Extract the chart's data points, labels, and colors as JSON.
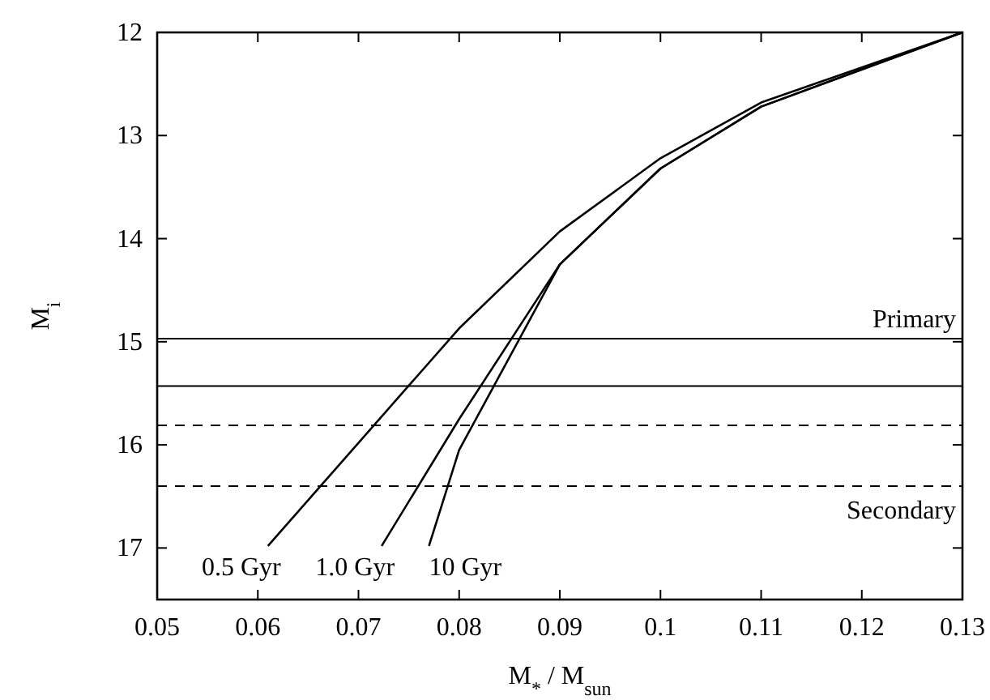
{
  "chart_data": {
    "type": "line",
    "xlabel": "M$_{*}$ / M$_{sun}$",
    "ylabel": "M$_{i}$",
    "xlim": [
      0.05,
      0.13
    ],
    "xticks": [
      0.05,
      0.06,
      0.07,
      0.08,
      0.09,
      0.1,
      0.11,
      0.12,
      0.13
    ],
    "ylim": [
      17.5,
      12
    ],
    "yticks": [
      12,
      13,
      14,
      15,
      16,
      17
    ],
    "grid": false,
    "marker": "none",
    "line_style": "solid",
    "series": [
      {
        "name": "0.5 Gyr",
        "color": "#000000",
        "x": [
          0.061,
          0.08,
          0.09,
          0.1,
          0.11,
          0.13
        ],
        "values": [
          16.98,
          14.87,
          13.93,
          13.22,
          12.68,
          12
        ]
      },
      {
        "name": "1.0 Gyr",
        "color": "#000000",
        "x": [
          0.0723,
          0.08,
          0.09,
          0.1,
          0.11,
          0.13
        ],
        "values": [
          16.98,
          15.75,
          14.25,
          13.32,
          12.72,
          12
        ]
      },
      {
        "name": "10 Gyr",
        "color": "#000000",
        "x": [
          0.077,
          0.08,
          0.09,
          0.1,
          0.11,
          0.13
        ],
        "values": [
          16.98,
          16.05,
          14.25,
          13.32,
          12.72,
          12
        ]
      }
    ],
    "ref_lines": [
      {
        "axis": "y",
        "value": 14.97,
        "label": "Primary",
        "color": "#000000",
        "line_style": "solid"
      },
      {
        "axis": "y",
        "value": 15.43,
        "label": null,
        "color": "#000000",
        "line_style": "solid"
      },
      {
        "axis": "y",
        "value": 15.81,
        "label": null,
        "color": "#000000",
        "line_style": "dashed"
      },
      {
        "axis": "y",
        "value": 16.4,
        "label": "Secondary",
        "color": "#000000",
        "line_style": "dashed"
      }
    ]
  }
}
